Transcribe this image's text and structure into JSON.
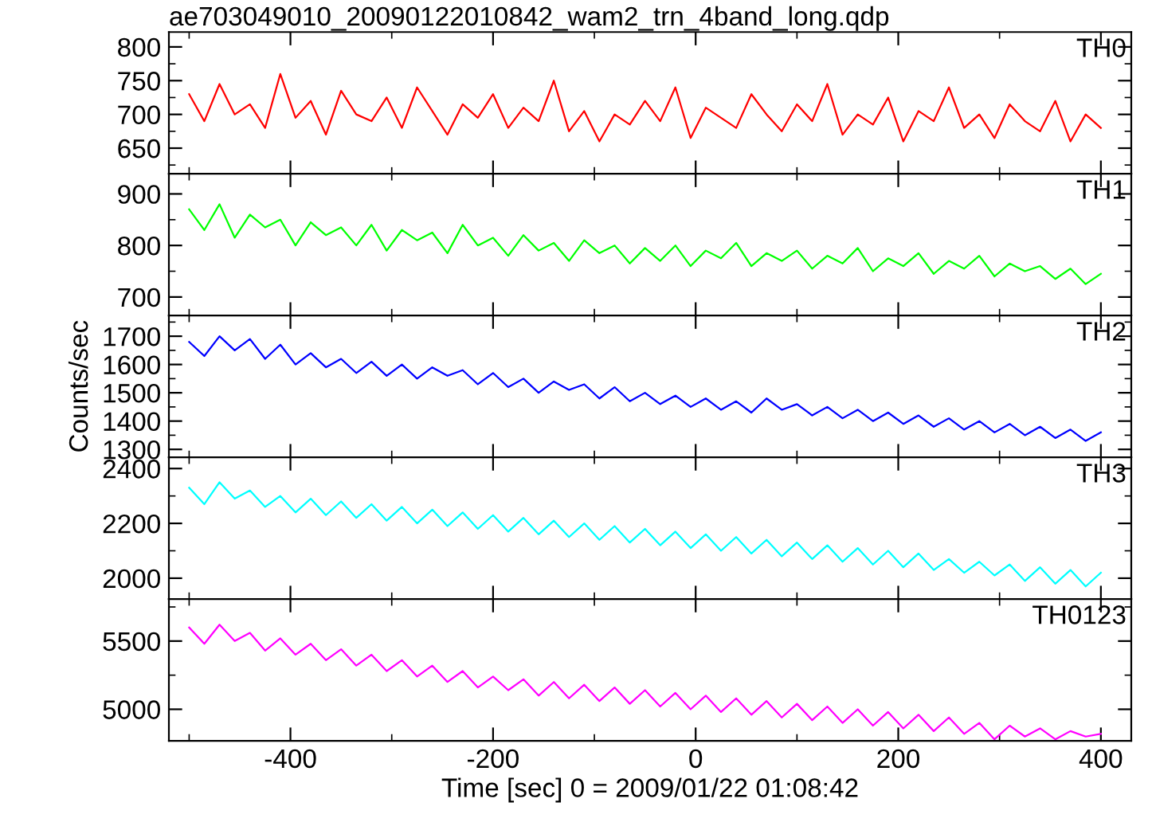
{
  "chart_data": [
    {
      "type": "line",
      "title": "ae703049010_20090122010842_wam2_trn_4band_long.qdp",
      "tick_labels": "y",
      "xlim": [
        -520,
        430
      ],
      "xticks": [
        -400,
        -200,
        0,
        200,
        400
      ],
      "ylim": [
        612,
        822
      ],
      "yticks": [
        650,
        700,
        750,
        800
      ],
      "x": [
        -500,
        -485,
        -470,
        -455,
        -440,
        -425,
        -410,
        -395,
        -380,
        -365,
        -350,
        -335,
        -320,
        -305,
        -290,
        -275,
        -260,
        -245,
        -230,
        -215,
        -200,
        -185,
        -170,
        -155,
        -140,
        -125,
        -110,
        -95,
        -80,
        -65,
        -50,
        -35,
        -20,
        -5,
        10,
        25,
        40,
        55,
        70,
        85,
        100,
        115,
        130,
        145,
        160,
        175,
        190,
        205,
        220,
        235,
        250,
        265,
        280,
        295,
        310,
        325,
        340,
        355,
        370,
        385,
        400
      ],
      "series": [
        {
          "name": "TH0",
          "color": "#ff0000",
          "values": [
            730,
            690,
            745,
            700,
            715,
            680,
            760,
            695,
            720,
            670,
            735,
            700,
            690,
            725,
            680,
            740,
            705,
            670,
            715,
            695,
            730,
            680,
            710,
            690,
            750,
            675,
            705,
            660,
            700,
            685,
            720,
            690,
            740,
            665,
            710,
            695,
            680,
            730,
            700,
            675,
            715,
            690,
            745,
            670,
            700,
            685,
            725,
            660,
            705,
            690,
            740,
            680,
            700,
            665,
            715,
            690,
            675,
            720,
            660,
            700,
            680
          ]
        }
      ]
    },
    {
      "type": "line",
      "tick_labels": "y",
      "xlim": [
        -520,
        430
      ],
      "xticks": [
        -400,
        -200,
        0,
        200,
        400
      ],
      "ylim": [
        664,
        939
      ],
      "yticks": [
        700,
        800,
        900
      ],
      "x": [
        -500,
        -485,
        -470,
        -455,
        -440,
        -425,
        -410,
        -395,
        -380,
        -365,
        -350,
        -335,
        -320,
        -305,
        -290,
        -275,
        -260,
        -245,
        -230,
        -215,
        -200,
        -185,
        -170,
        -155,
        -140,
        -125,
        -110,
        -95,
        -80,
        -65,
        -50,
        -35,
        -20,
        -5,
        10,
        25,
        40,
        55,
        70,
        85,
        100,
        115,
        130,
        145,
        160,
        175,
        190,
        205,
        220,
        235,
        250,
        265,
        280,
        295,
        310,
        325,
        340,
        355,
        370,
        385,
        400
      ],
      "series": [
        {
          "name": "TH1",
          "color": "#00ff00",
          "values": [
            870,
            830,
            880,
            815,
            860,
            835,
            850,
            800,
            845,
            820,
            835,
            800,
            840,
            790,
            830,
            810,
            825,
            785,
            840,
            800,
            815,
            780,
            820,
            790,
            805,
            770,
            810,
            785,
            800,
            765,
            795,
            770,
            800,
            760,
            790,
            775,
            805,
            760,
            785,
            770,
            790,
            755,
            780,
            765,
            795,
            750,
            775,
            760,
            785,
            745,
            770,
            755,
            780,
            740,
            765,
            750,
            760,
            735,
            755,
            725,
            745
          ]
        }
      ]
    },
    {
      "type": "line",
      "ylabel": "Counts/sec",
      "tick_labels": "y",
      "xlim": [
        -520,
        430
      ],
      "xticks": [
        -400,
        -200,
        0,
        200,
        400
      ],
      "ylim": [
        1272,
        1773
      ],
      "yticks": [
        1300,
        1400,
        1500,
        1600,
        1700
      ],
      "x": [
        -500,
        -485,
        -470,
        -455,
        -440,
        -425,
        -410,
        -395,
        -380,
        -365,
        -350,
        -335,
        -320,
        -305,
        -290,
        -275,
        -260,
        -245,
        -230,
        -215,
        -200,
        -185,
        -170,
        -155,
        -140,
        -125,
        -110,
        -95,
        -80,
        -65,
        -50,
        -35,
        -20,
        -5,
        10,
        25,
        40,
        55,
        70,
        85,
        100,
        115,
        130,
        145,
        160,
        175,
        190,
        205,
        220,
        235,
        250,
        265,
        280,
        295,
        310,
        325,
        340,
        355,
        370,
        385,
        400
      ],
      "series": [
        {
          "name": "TH2",
          "color": "#0000ff",
          "values": [
            1680,
            1630,
            1700,
            1650,
            1690,
            1620,
            1670,
            1600,
            1640,
            1590,
            1620,
            1570,
            1610,
            1560,
            1600,
            1550,
            1590,
            1560,
            1580,
            1530,
            1570,
            1520,
            1550,
            1500,
            1540,
            1510,
            1530,
            1480,
            1520,
            1470,
            1500,
            1460,
            1490,
            1450,
            1480,
            1440,
            1470,
            1430,
            1480,
            1440,
            1460,
            1420,
            1450,
            1410,
            1440,
            1400,
            1430,
            1390,
            1420,
            1380,
            1410,
            1370,
            1400,
            1360,
            1390,
            1350,
            1380,
            1340,
            1370,
            1330,
            1360
          ]
        }
      ]
    },
    {
      "type": "line",
      "tick_labels": "y",
      "xlim": [
        -520,
        430
      ],
      "xticks": [
        -400,
        -200,
        0,
        200,
        400
      ],
      "ylim": [
        1924,
        2441
      ],
      "yticks": [
        2000,
        2200,
        2400
      ],
      "x": [
        -500,
        -485,
        -470,
        -455,
        -440,
        -425,
        -410,
        -395,
        -380,
        -365,
        -350,
        -335,
        -320,
        -305,
        -290,
        -275,
        -260,
        -245,
        -230,
        -215,
        -200,
        -185,
        -170,
        -155,
        -140,
        -125,
        -110,
        -95,
        -80,
        -65,
        -50,
        -35,
        -20,
        -5,
        10,
        25,
        40,
        55,
        70,
        85,
        100,
        115,
        130,
        145,
        160,
        175,
        190,
        205,
        220,
        235,
        250,
        265,
        280,
        295,
        310,
        325,
        340,
        355,
        370,
        385,
        400
      ],
      "series": [
        {
          "name": "TH3",
          "color": "#00ffff",
          "values": [
            2330,
            2270,
            2350,
            2290,
            2320,
            2260,
            2300,
            2240,
            2290,
            2230,
            2280,
            2220,
            2270,
            2210,
            2260,
            2200,
            2250,
            2190,
            2240,
            2180,
            2230,
            2170,
            2220,
            2160,
            2210,
            2150,
            2200,
            2140,
            2190,
            2130,
            2180,
            2120,
            2170,
            2110,
            2160,
            2100,
            2150,
            2090,
            2140,
            2080,
            2130,
            2070,
            2120,
            2060,
            2110,
            2050,
            2100,
            2040,
            2090,
            2030,
            2070,
            2020,
            2060,
            2010,
            2050,
            1990,
            2040,
            1980,
            2030,
            1970,
            2020
          ]
        }
      ]
    },
    {
      "type": "line",
      "xlabel": "Time [sec] 0 = 2009/01/22 01:08:42",
      "xlim": [
        -520,
        430
      ],
      "xticks": [
        -400,
        -200,
        0,
        200,
        400
      ],
      "ylim": [
        4769,
        5808
      ],
      "yticks": [
        5000,
        5500
      ],
      "x": [
        -500,
        -485,
        -470,
        -455,
        -440,
        -425,
        -410,
        -395,
        -380,
        -365,
        -350,
        -335,
        -320,
        -305,
        -290,
        -275,
        -260,
        -245,
        -230,
        -215,
        -200,
        -185,
        -170,
        -155,
        -140,
        -125,
        -110,
        -95,
        -80,
        -65,
        -50,
        -35,
        -20,
        -5,
        10,
        25,
        40,
        55,
        70,
        85,
        100,
        115,
        130,
        145,
        160,
        175,
        190,
        205,
        220,
        235,
        250,
        265,
        280,
        295,
        310,
        325,
        340,
        355,
        370,
        385,
        400
      ],
      "series": [
        {
          "name": "TH0123",
          "color": "#ff00ff",
          "values": [
            5600,
            5480,
            5620,
            5500,
            5560,
            5430,
            5520,
            5400,
            5480,
            5360,
            5440,
            5320,
            5400,
            5280,
            5360,
            5240,
            5320,
            5200,
            5280,
            5160,
            5240,
            5140,
            5220,
            5100,
            5200,
            5080,
            5180,
            5060,
            5160,
            5040,
            5140,
            5020,
            5120,
            5000,
            5100,
            4980,
            5080,
            4960,
            5060,
            4940,
            5040,
            4920,
            5020,
            4900,
            5000,
            4880,
            4980,
            4860,
            4960,
            4840,
            4940,
            4820,
            4900,
            4780,
            4880,
            4800,
            4860,
            4780,
            4840,
            4800,
            4820
          ]
        }
      ]
    }
  ]
}
